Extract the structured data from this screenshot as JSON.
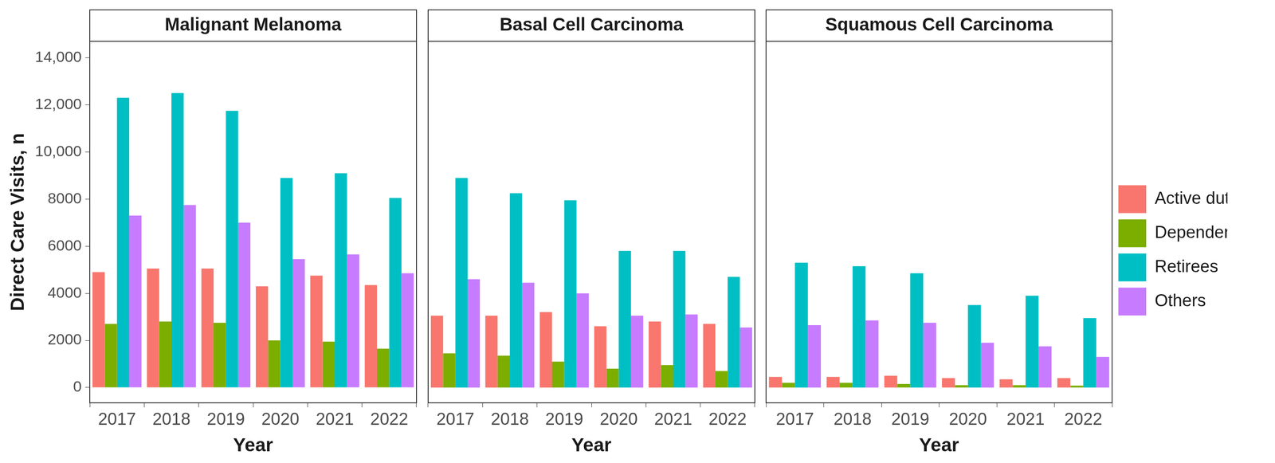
{
  "chart_data": [
    {
      "type": "bar",
      "title": "Malignant Melanoma",
      "x_label": "Year",
      "y_label": "Direct Care Visits, n",
      "categories": [
        "2017",
        "2018",
        "2019",
        "2020",
        "2021",
        "2022"
      ],
      "series": [
        {
          "name": "Active duty",
          "color": "#F8766D",
          "values": [
            4900,
            5050,
            5050,
            4300,
            4750,
            4350
          ]
        },
        {
          "name": "Dependents",
          "color": "#7CAE00",
          "values": [
            2700,
            2800,
            2750,
            2000,
            1950,
            1650
          ]
        },
        {
          "name": "Retirees",
          "color": "#00BFC4",
          "values": [
            12300,
            12500,
            11750,
            8900,
            9100,
            8050
          ]
        },
        {
          "name": "Others",
          "color": "#C77CFF",
          "values": [
            7300,
            7750,
            7000,
            5450,
            5650,
            4850
          ]
        }
      ],
      "ylim": [
        -650,
        14700
      ],
      "yticks": [
        0,
        2000,
        4000,
        6000,
        8000,
        {
          "value": 10000,
          "label": "10,000"
        },
        {
          "value": 12000,
          "label": "12,000"
        },
        {
          "value": 14000,
          "label": "14,000"
        }
      ],
      "grid": false
    },
    {
      "type": "bar",
      "title": "Basal Cell Carcinoma",
      "x_label": "Year",
      "categories": [
        "2017",
        "2018",
        "2019",
        "2020",
        "2021",
        "2022"
      ],
      "series": [
        {
          "name": "Active duty",
          "color": "#F8766D",
          "values": [
            3050,
            3050,
            3200,
            2600,
            2800,
            2700
          ]
        },
        {
          "name": "Dependents",
          "color": "#7CAE00",
          "values": [
            1450,
            1350,
            1100,
            800,
            950,
            700
          ]
        },
        {
          "name": "Retirees",
          "color": "#00BFC4",
          "values": [
            8900,
            8250,
            7950,
            5800,
            5800,
            4700
          ]
        },
        {
          "name": "Others",
          "color": "#C77CFF",
          "values": [
            4600,
            4450,
            4000,
            3050,
            3100,
            2550
          ]
        }
      ],
      "ylim": [
        -650,
        14700
      ],
      "tick_labels": "x",
      "grid": false
    },
    {
      "type": "bar",
      "title": "Squamous Cell Carcinoma",
      "x_label": "Year",
      "categories": [
        "2017",
        "2018",
        "2019",
        "2020",
        "2021",
        "2022"
      ],
      "series": [
        {
          "name": "Active duty",
          "color": "#F8766D",
          "values": [
            450,
            450,
            500,
            400,
            350,
            400
          ]
        },
        {
          "name": "Dependents",
          "color": "#7CAE00",
          "values": [
            200,
            200,
            150,
            100,
            100,
            80
          ]
        },
        {
          "name": "Retirees",
          "color": "#00BFC4",
          "values": [
            5300,
            5150,
            4850,
            3500,
            3900,
            2950
          ]
        },
        {
          "name": "Others",
          "color": "#C77CFF",
          "values": [
            2650,
            2850,
            2750,
            1900,
            1750,
            1300
          ]
        }
      ],
      "ylim": [
        -650,
        14700
      ],
      "tick_labels": "x",
      "grid": false,
      "legend": "right"
    }
  ]
}
